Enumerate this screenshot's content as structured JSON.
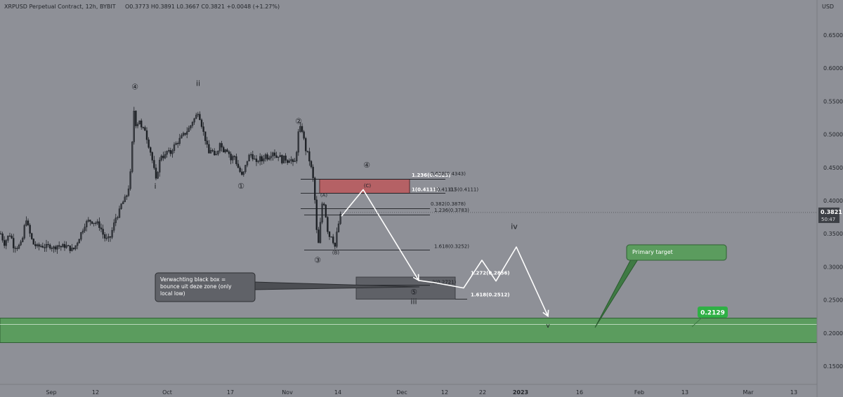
{
  "header": {
    "symbol": "XRPUSD Perpetual Contract, 12h, BYBIT",
    "ohlc": "O0.3773 H0.3891 L0.3667 C0.3821 +0.0048 (+1.27%)",
    "currency": "USD"
  },
  "colors": {
    "background": "#8e9097",
    "candle": "#1f2227",
    "price_tag": "#3c3f45",
    "green_zone": "#5b9c5e",
    "red_zone": "#b56165",
    "target_badge": "#2fb045",
    "arrow": "#ffffff"
  },
  "chart_data": {
    "type": "candlestick",
    "instrument": "XRPUSD",
    "timeframe": "12h",
    "x_axis": {
      "tick_labels": [
        "Sep",
        "12",
        "Oct",
        "17",
        "Nov",
        "14",
        "Dec",
        "12",
        "22",
        "2023",
        "16",
        "Feb",
        "13",
        "Mar",
        "13"
      ]
    },
    "y_axis": {
      "range": [
        0.135,
        0.685
      ],
      "ticks": [
        "0.6500",
        "0.6000",
        "0.5500",
        "0.5000",
        "0.4500",
        "0.4000",
        "0.3500",
        "0.3000",
        "0.2500",
        "0.2000",
        "0.1500"
      ]
    },
    "last_price": {
      "value": 0.3821,
      "label": "0.3821",
      "countdown": "50:47"
    },
    "price_path": [
      [
        0,
        0.35
      ],
      [
        5,
        0.335
      ],
      [
        10,
        0.345
      ],
      [
        14,
        0.35
      ],
      [
        18,
        0.332
      ],
      [
        24,
        0.33
      ],
      [
        30,
        0.335
      ],
      [
        36,
        0.375
      ],
      [
        40,
        0.355
      ],
      [
        46,
        0.335
      ],
      [
        52,
        0.33
      ],
      [
        58,
        0.332
      ],
      [
        64,
        0.33
      ],
      [
        70,
        0.332
      ],
      [
        76,
        0.328
      ],
      [
        80,
        0.333
      ],
      [
        86,
        0.33
      ],
      [
        92,
        0.332
      ],
      [
        98,
        0.328
      ],
      [
        103,
        0.325
      ],
      [
        108,
        0.335
      ],
      [
        114,
        0.35
      ],
      [
        120,
        0.365
      ],
      [
        126,
        0.37
      ],
      [
        132,
        0.368
      ],
      [
        138,
        0.365
      ],
      [
        142,
        0.36
      ],
      [
        147,
        0.345
      ],
      [
        152,
        0.34
      ],
      [
        156,
        0.345
      ],
      [
        160,
        0.36
      ],
      [
        164,
        0.375
      ],
      [
        168,
        0.38
      ],
      [
        172,
        0.395
      ],
      [
        176,
        0.4
      ],
      [
        180,
        0.41
      ],
      [
        184,
        0.43
      ],
      [
        188,
        0.5
      ],
      [
        190,
        0.54
      ],
      [
        193,
        0.51
      ],
      [
        197,
        0.525
      ],
      [
        201,
        0.505
      ],
      [
        205,
        0.51
      ],
      [
        209,
        0.49
      ],
      [
        213,
        0.475
      ],
      [
        217,
        0.455
      ],
      [
        221,
        0.43
      ],
      [
        225,
        0.455
      ],
      [
        229,
        0.47
      ],
      [
        233,
        0.465
      ],
      [
        237,
        0.475
      ],
      [
        241,
        0.47
      ],
      [
        245,
        0.48
      ],
      [
        249,
        0.485
      ],
      [
        253,
        0.49
      ],
      [
        257,
        0.495
      ],
      [
        261,
        0.5
      ],
      [
        265,
        0.505
      ],
      [
        269,
        0.51
      ],
      [
        273,
        0.52
      ],
      [
        277,
        0.525
      ],
      [
        281,
        0.535
      ],
      [
        285,
        0.52
      ],
      [
        288,
        0.505
      ],
      [
        292,
        0.49
      ],
      [
        296,
        0.47
      ],
      [
        300,
        0.48
      ],
      [
        304,
        0.465
      ],
      [
        308,
        0.47
      ],
      [
        312,
        0.49
      ],
      [
        316,
        0.475
      ],
      [
        320,
        0.48
      ],
      [
        324,
        0.475
      ],
      [
        328,
        0.46
      ],
      [
        332,
        0.47
      ],
      [
        336,
        0.455
      ],
      [
        340,
        0.445
      ],
      [
        344,
        0.435
      ],
      [
        348,
        0.45
      ],
      [
        352,
        0.465
      ],
      [
        356,
        0.47
      ],
      [
        360,
        0.465
      ],
      [
        364,
        0.455
      ],
      [
        368,
        0.465
      ],
      [
        372,
        0.46
      ],
      [
        376,
        0.47
      ],
      [
        380,
        0.465
      ],
      [
        384,
        0.47
      ],
      [
        388,
        0.475
      ],
      [
        392,
        0.465
      ],
      [
        396,
        0.47
      ],
      [
        400,
        0.46
      ],
      [
        404,
        0.465
      ],
      [
        408,
        0.46
      ],
      [
        412,
        0.465
      ],
      [
        416,
        0.455
      ],
      [
        420,
        0.46
      ],
      [
        423,
        0.5
      ],
      [
        427,
        0.51
      ],
      [
        430,
        0.505
      ],
      [
        433,
        0.48
      ],
      [
        437,
        0.47
      ],
      [
        441,
        0.455
      ],
      [
        445,
        0.43
      ],
      [
        448,
        0.39
      ],
      [
        450,
        0.35
      ],
      [
        452,
        0.33
      ],
      [
        455,
        0.365
      ],
      [
        458,
        0.4
      ],
      [
        461,
        0.395
      ],
      [
        464,
        0.365
      ],
      [
        467,
        0.345
      ],
      [
        470,
        0.35
      ],
      [
        473,
        0.34
      ],
      [
        476,
        0.33
      ],
      [
        479,
        0.355
      ],
      [
        482,
        0.37
      ],
      [
        485,
        0.382
      ]
    ],
    "wave_labels": [
      {
        "text": "④",
        "price": 0.568,
        "x": 192,
        "size": 11
      },
      {
        "text": "ii",
        "price": 0.573,
        "x": 282,
        "size": 11
      },
      {
        "text": "i",
        "price": 0.418,
        "x": 221,
        "size": 11
      },
      {
        "text": "①",
        "price": 0.418,
        "x": 343,
        "size": 11
      },
      {
        "text": "②",
        "price": 0.516,
        "x": 425,
        "size": 11
      },
      {
        "text": "④",
        "price": 0.45,
        "x": 522,
        "size": 11
      },
      {
        "text": "(C)",
        "price": 0.42,
        "x": 523,
        "size": 7
      },
      {
        "text": "(A)",
        "price": 0.406,
        "x": 461,
        "size": 7
      },
      {
        "text": "(B)",
        "price": 0.319,
        "x": 478,
        "size": 7
      },
      {
        "text": "③",
        "price": 0.306,
        "x": 452,
        "size": 11
      },
      {
        "text": "⑤",
        "price": 0.258,
        "x": 589,
        "size": 11
      },
      {
        "text": "iii",
        "price": 0.244,
        "x": 589,
        "size": 11
      },
      {
        "text": "iv",
        "price": 0.357,
        "x": 732,
        "size": 11
      },
      {
        "text": "v",
        "price": 0.208,
        "x": 780,
        "size": 9
      }
    ],
    "fib_levels": [
      {
        "label": "1.236(0.4323)",
        "price": 0.4323,
        "x1": 428,
        "x2": 634,
        "label_x": 586,
        "label_price": 0.436
      },
      {
        "label": "0.618(0.4343)",
        "price": 0.4343,
        "x1": 0,
        "x2": 0,
        "label_x": 613,
        "label_price": 0.438
      },
      {
        "label": "1(0.4111)",
        "price": 0.4111,
        "x1": 428,
        "x2": 634,
        "label_x": 586,
        "label_price": 0.4145
      },
      {
        "label": "(0.4111)",
        "price": 0.4111,
        "x1": 0,
        "x2": 0,
        "label_x": 619,
        "label_price": 0.4145
      },
      {
        "label": "0.5(0.4111)",
        "price": 0.4111,
        "x1": 0,
        "x2": 0,
        "label_x": 640,
        "label_price": 0.4145
      },
      {
        "label": "0.382(0.3878)",
        "price": 0.3878,
        "x1": 428,
        "x2": 612,
        "label_x": 613,
        "label_price": 0.3925
      },
      {
        "label": "1.236(0.3783)",
        "price": 0.3783,
        "x1": 433,
        "x2": 612,
        "label_x": 618,
        "label_price": 0.383
      },
      {
        "label": "1.618(0.3252)",
        "price": 0.3252,
        "x1": 433,
        "x2": 612,
        "label_x": 618,
        "label_price": 0.3285
      },
      {
        "label": "2(0.2721)",
        "price": 0.2721,
        "x1": 505,
        "x2": 612,
        "label_x": 615,
        "label_price": 0.2745
      },
      {
        "label": "1.272(0.2856)",
        "price": 0.2856,
        "x1": 0,
        "x2": 0,
        "label_x": 670,
        "label_price": 0.2885
      },
      {
        "label": "1.618(0.2512)",
        "price": 0.2512,
        "x1": 648,
        "x2": 665,
        "label_x": 670,
        "label_price": 0.2555
      }
    ],
    "zones": [
      {
        "name": "red-resistance-box",
        "price_top": 0.4323,
        "price_bottom": 0.4111,
        "x1": 455,
        "x2": 583
      },
      {
        "name": "black-box",
        "price_top": 0.2845,
        "price_bottom": 0.2512,
        "x1": 507,
        "x2": 648
      },
      {
        "name": "green-target-zone",
        "price_top": 0.2225,
        "price_bottom": 0.1855,
        "x1": 0,
        "x2": 1163
      }
    ],
    "projection_path": [
      [
        486,
        0.3765
      ],
      [
        517,
        0.4165
      ],
      [
        596,
        0.2795
      ],
      [
        620,
        0.2758
      ],
      [
        660,
        0.268
      ],
      [
        686,
        0.31
      ],
      [
        706,
        0.2785
      ],
      [
        735,
        0.33
      ],
      [
        780,
        0.2255
      ]
    ],
    "annotations": [
      {
        "text": "Verwachting black box = bounce uit deze zone (only local low)"
      },
      {
        "text": "Primary target"
      }
    ],
    "target": {
      "value": 0.2129,
      "label": "0.2129"
    }
  }
}
